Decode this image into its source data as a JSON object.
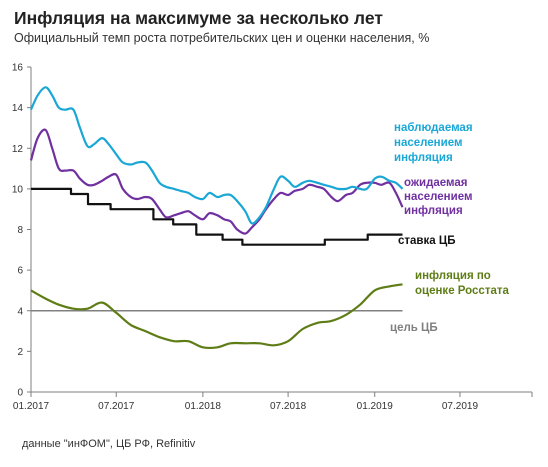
{
  "header": {
    "title": "Инфляция на максимуме за несколько лет",
    "subtitle": "Официальный темп роста  потребительских  цен и оценки населения, %"
  },
  "footer": {
    "source": "данные \"инФОМ\", ЦБ РФ, Refinitiv"
  },
  "chart_data": {
    "type": "line",
    "title": "Инфляция на максимуме за несколько лет",
    "subtitle": "Официальный темп роста  потребительских  цен и оценки населения, %",
    "xlabel": "",
    "ylabel": "",
    "ylim": [
      0,
      16
    ],
    "yticks": [
      "0",
      "2",
      "4",
      "6",
      "8",
      "10",
      "12",
      "14",
      "16"
    ],
    "x_range": [
      "2017-01",
      "2019-12"
    ],
    "xticks": [
      "01.2017",
      "07.2017",
      "01.2018",
      "07.2018",
      "01.2019",
      "07.2019"
    ],
    "grid": false,
    "series": [
      {
        "name": "наблюдаемая населением инфляция",
        "label_lines": [
          "наблюдаемая",
          "населением",
          "инфляция"
        ],
        "color": "#1aa7d6",
        "x": [
          "2017-01-01",
          "2017-01-15",
          "2017-02-01",
          "2017-02-15",
          "2017-03-01",
          "2017-03-15",
          "2017-04-01",
          "2017-04-15",
          "2017-05-01",
          "2017-05-15",
          "2017-06-01",
          "2017-06-15",
          "2017-07-01",
          "2017-07-15",
          "2017-08-01",
          "2017-08-15",
          "2017-09-01",
          "2017-09-15",
          "2017-10-01",
          "2017-10-15",
          "2017-11-01",
          "2017-11-15",
          "2017-12-01",
          "2017-12-15",
          "2018-01-01",
          "2018-01-15",
          "2018-02-01",
          "2018-02-15",
          "2018-03-01",
          "2018-03-15",
          "2018-04-01",
          "2018-04-15",
          "2018-05-01",
          "2018-05-15",
          "2018-06-01",
          "2018-06-15",
          "2018-07-01",
          "2018-07-15",
          "2018-08-01",
          "2018-08-15",
          "2018-09-01",
          "2018-09-15",
          "2018-10-01",
          "2018-10-15",
          "2018-11-01",
          "2018-11-15",
          "2018-12-01",
          "2018-12-15",
          "2019-01-01",
          "2019-01-15",
          "2019-02-01",
          "2019-02-15",
          "2019-03-01"
        ],
        "values": [
          13.9,
          14.6,
          15.0,
          14.6,
          14.0,
          13.9,
          13.9,
          13.0,
          12.1,
          12.2,
          12.5,
          12.2,
          11.7,
          11.3,
          11.2,
          11.3,
          11.3,
          10.9,
          10.3,
          10.1,
          10.0,
          9.9,
          9.8,
          9.6,
          9.5,
          9.8,
          9.6,
          9.7,
          9.7,
          9.4,
          8.9,
          8.3,
          8.6,
          9.1,
          10.0,
          10.6,
          10.4,
          10.1,
          10.3,
          10.4,
          10.3,
          10.2,
          10.1,
          10.0,
          10.0,
          10.1,
          10.0,
          10.0,
          10.5,
          10.6,
          10.4,
          10.3,
          10.0
        ]
      },
      {
        "name": "ожидаемая населением инфляция",
        "label_lines": [
          "ожидаемая",
          "населением",
          "инфляция"
        ],
        "color": "#7030a0",
        "x": [
          "2017-01-01",
          "2017-01-15",
          "2017-02-01",
          "2017-02-15",
          "2017-03-01",
          "2017-03-15",
          "2017-04-01",
          "2017-04-15",
          "2017-05-01",
          "2017-05-15",
          "2017-06-01",
          "2017-06-15",
          "2017-07-01",
          "2017-07-15",
          "2017-08-01",
          "2017-08-15",
          "2017-09-01",
          "2017-09-15",
          "2017-10-01",
          "2017-10-15",
          "2017-11-01",
          "2017-11-15",
          "2017-12-01",
          "2017-12-15",
          "2018-01-01",
          "2018-01-15",
          "2018-02-01",
          "2018-02-15",
          "2018-03-01",
          "2018-03-15",
          "2018-04-01",
          "2018-04-15",
          "2018-05-01",
          "2018-05-15",
          "2018-06-01",
          "2018-06-15",
          "2018-07-01",
          "2018-07-15",
          "2018-08-01",
          "2018-08-15",
          "2018-09-01",
          "2018-09-15",
          "2018-10-01",
          "2018-10-15",
          "2018-11-01",
          "2018-11-15",
          "2018-12-01",
          "2018-12-15",
          "2019-01-01",
          "2019-01-15",
          "2019-02-01",
          "2019-02-15",
          "2019-03-01"
        ],
        "values": [
          11.4,
          12.5,
          12.9,
          12.0,
          11.0,
          10.9,
          10.9,
          10.5,
          10.2,
          10.2,
          10.4,
          10.6,
          10.7,
          10.0,
          9.6,
          9.5,
          9.6,
          9.5,
          9.0,
          8.6,
          8.7,
          8.8,
          8.9,
          8.7,
          8.5,
          8.8,
          8.7,
          8.5,
          8.4,
          8.0,
          7.8,
          8.1,
          8.5,
          9.0,
          9.5,
          9.8,
          9.7,
          9.9,
          10.0,
          10.2,
          10.1,
          10.0,
          9.6,
          9.4,
          9.7,
          9.8,
          10.2,
          10.3,
          10.3,
          10.2,
          10.3,
          9.8,
          9.1
        ]
      },
      {
        "name": "ставка ЦБ",
        "label_lines": [
          "ставка ЦБ"
        ],
        "color": "#111111",
        "step": true,
        "x": [
          "2017-01-01",
          "2017-03-27",
          "2017-05-02",
          "2017-06-19",
          "2017-09-18",
          "2017-10-30",
          "2017-12-18",
          "2018-02-12",
          "2018-03-26",
          "2018-09-17",
          "2018-12-17",
          "2019-03-01"
        ],
        "values": [
          10.0,
          9.75,
          9.25,
          9.0,
          8.5,
          8.25,
          7.75,
          7.5,
          7.25,
          7.5,
          7.75,
          7.75
        ]
      },
      {
        "name": "инфляция по оценке Росстата",
        "label_lines": [
          "инфляция по",
          "оценке Росстата"
        ],
        "color": "#5f7d16",
        "x": [
          "2017-01-01",
          "2017-02-01",
          "2017-03-01",
          "2017-04-01",
          "2017-05-01",
          "2017-06-01",
          "2017-07-01",
          "2017-08-01",
          "2017-09-01",
          "2017-10-01",
          "2017-11-01",
          "2017-12-01",
          "2018-01-01",
          "2018-02-01",
          "2018-03-01",
          "2018-04-01",
          "2018-05-01",
          "2018-06-01",
          "2018-07-01",
          "2018-08-01",
          "2018-09-01",
          "2018-10-01",
          "2018-11-01",
          "2018-12-01",
          "2019-01-01",
          "2019-02-01",
          "2019-03-01"
        ],
        "values": [
          5.0,
          4.6,
          4.3,
          4.1,
          4.1,
          4.4,
          3.9,
          3.3,
          3.0,
          2.7,
          2.5,
          2.5,
          2.2,
          2.2,
          2.4,
          2.4,
          2.4,
          2.3,
          2.5,
          3.1,
          3.4,
          3.5,
          3.8,
          4.3,
          5.0,
          5.2,
          5.3
        ]
      },
      {
        "name": "цель ЦБ",
        "label_lines": [
          "цель ЦБ"
        ],
        "color": "#808080",
        "x": [
          "2017-01-01",
          "2019-03-01"
        ],
        "values": [
          4.0,
          4.0
        ]
      }
    ]
  }
}
